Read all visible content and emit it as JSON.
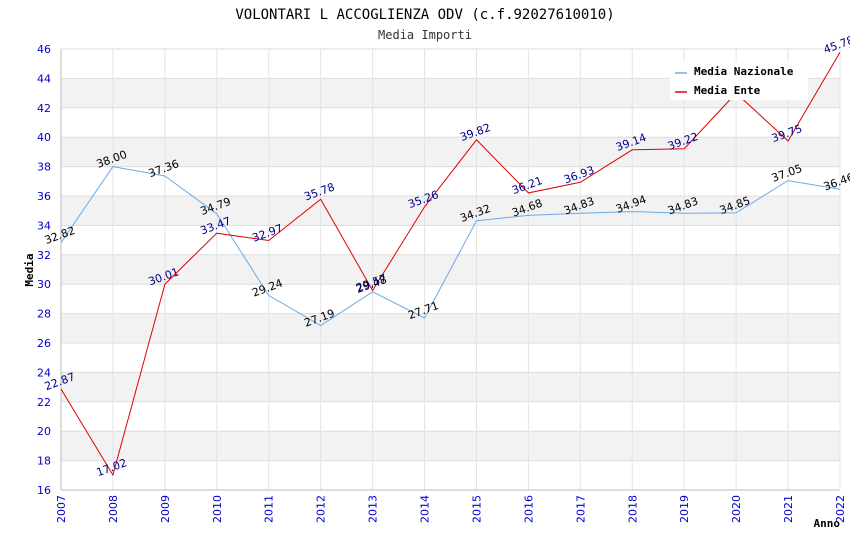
{
  "chart_data": {
    "type": "line",
    "title": "VOLONTARI L ACCOGLIENZA ODV (c.f.92027610010)",
    "subtitle": "Media Importi",
    "xlabel": "Anno",
    "ylabel": "Media",
    "ylim": [
      16,
      46
    ],
    "yticks": [
      16,
      18,
      20,
      22,
      24,
      26,
      28,
      30,
      32,
      34,
      36,
      38,
      40,
      42,
      44,
      46
    ],
    "categories": [
      "2007",
      "2008",
      "2009",
      "2010",
      "2011",
      "2012",
      "2013",
      "2014",
      "2015",
      "2016",
      "2017",
      "2018",
      "2019",
      "2020",
      "2021",
      "2022"
    ],
    "grid": true,
    "legend_position": "top-right",
    "series": [
      {
        "name": "Media Nazionale",
        "color": "#6aaaea",
        "label_color": "#000000",
        "values": [
          32.82,
          38.0,
          37.36,
          34.79,
          29.24,
          27.19,
          29.48,
          27.71,
          34.32,
          34.68,
          34.83,
          34.94,
          34.83,
          34.85,
          37.05,
          36.46
        ],
        "labels": [
          "32.82",
          "38.00",
          "37.36",
          "34.79",
          "29.24",
          "27.19",
          "29.48",
          "27.71",
          "34.32",
          "34.68",
          "34.83",
          "34.94",
          "34.83",
          "34.85",
          "37.05",
          "36.46"
        ]
      },
      {
        "name": "Media Ente",
        "color": "#e00000",
        "label_color": "#00008b",
        "values": [
          22.87,
          17.02,
          30.01,
          33.47,
          32.97,
          35.78,
          29.57,
          35.26,
          39.82,
          36.21,
          36.93,
          39.14,
          39.22,
          43.0,
          39.75,
          45.78
        ],
        "labels": [
          "22.87",
          "17.02",
          "30.01",
          "33.47",
          "32.97",
          "35.78",
          "29.57",
          "35.26",
          "39.82",
          "36.21",
          "36.93",
          "39.14",
          "39.22",
          "",
          "39.75",
          "45.78"
        ]
      }
    ]
  }
}
